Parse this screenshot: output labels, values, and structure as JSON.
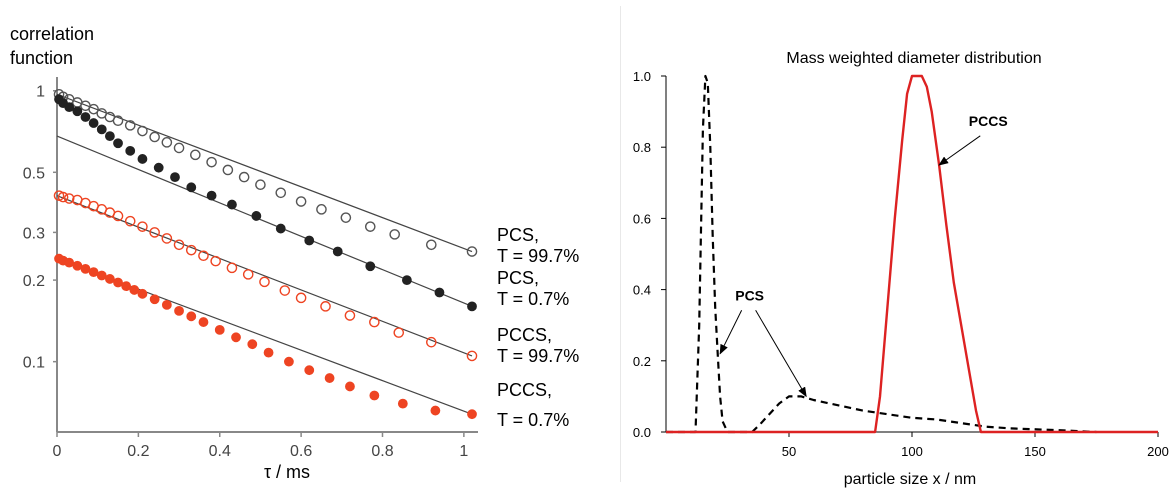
{
  "chart_data": [
    {
      "type": "scatter",
      "title": "",
      "ylabel": "correlation\nfunction",
      "xlabel": "τ / ms",
      "xlim": [
        0,
        1.02
      ],
      "ylim_log": [
        0.055,
        1.05
      ],
      "y_scale": "log",
      "x_ticks": [
        0,
        0.2,
        0.4,
        0.6,
        0.8,
        1
      ],
      "x_tick_labels": [
        "0",
        "0.2",
        "0.4",
        "0.6",
        "0.8",
        "1"
      ],
      "y_ticks": [
        1,
        0.5,
        0.3,
        0.2,
        0.1
      ],
      "y_tick_labels": [
        "1",
        "0.5",
        "0.3",
        "0.2",
        "0.1"
      ],
      "series": [
        {
          "name": "PCS,\nT = 99.7%",
          "color": "#555555",
          "marker": "open-circle",
          "fit": {
            "x0": 0,
            "y0": 0.97,
            "x1": 1.02,
            "y1": 0.255
          },
          "points": [
            [
              0.005,
              0.97
            ],
            [
              0.015,
              0.95
            ],
            [
              0.03,
              0.93
            ],
            [
              0.05,
              0.905
            ],
            [
              0.07,
              0.88
            ],
            [
              0.09,
              0.855
            ],
            [
              0.11,
              0.825
            ],
            [
              0.13,
              0.8
            ],
            [
              0.15,
              0.775
            ],
            [
              0.18,
              0.745
            ],
            [
              0.21,
              0.71
            ],
            [
              0.24,
              0.675
            ],
            [
              0.27,
              0.645
            ],
            [
              0.3,
              0.615
            ],
            [
              0.34,
              0.58
            ],
            [
              0.38,
              0.545
            ],
            [
              0.42,
              0.51
            ],
            [
              0.46,
              0.48
            ],
            [
              0.5,
              0.45
            ],
            [
              0.55,
              0.42
            ],
            [
              0.6,
              0.39
            ],
            [
              0.65,
              0.365
            ],
            [
              0.71,
              0.34
            ],
            [
              0.77,
              0.315
            ],
            [
              0.83,
              0.295
            ],
            [
              0.92,
              0.27
            ],
            [
              1.02,
              0.255
            ]
          ]
        },
        {
          "name": "PCS,\nT = 0.7%",
          "color": "#222222",
          "marker": "filled-star",
          "fit": {
            "x0": 0,
            "y0": 0.68,
            "x1": 1.02,
            "y1": 0.16
          },
          "points": [
            [
              0.005,
              0.93
            ],
            [
              0.015,
              0.9
            ],
            [
              0.03,
              0.87
            ],
            [
              0.05,
              0.84
            ],
            [
              0.07,
              0.8
            ],
            [
              0.09,
              0.76
            ],
            [
              0.11,
              0.72
            ],
            [
              0.13,
              0.68
            ],
            [
              0.15,
              0.64
            ],
            [
              0.18,
              0.6
            ],
            [
              0.21,
              0.56
            ],
            [
              0.25,
              0.52
            ],
            [
              0.29,
              0.48
            ],
            [
              0.33,
              0.44
            ],
            [
              0.38,
              0.41
            ],
            [
              0.43,
              0.38
            ],
            [
              0.49,
              0.345
            ],
            [
              0.55,
              0.31
            ],
            [
              0.62,
              0.28
            ],
            [
              0.69,
              0.255
            ],
            [
              0.77,
              0.225
            ],
            [
              0.86,
              0.2
            ],
            [
              0.94,
              0.18
            ],
            [
              1.02,
              0.16
            ]
          ]
        },
        {
          "name": "PCCS,\nT = 99.7%",
          "color": "#ee4422",
          "marker": "open-circle",
          "fit": {
            "x0": 0,
            "y0": 0.41,
            "x1": 1.02,
            "y1": 0.105
          },
          "points": [
            [
              0.005,
              0.41
            ],
            [
              0.015,
              0.405
            ],
            [
              0.03,
              0.4
            ],
            [
              0.05,
              0.395
            ],
            [
              0.07,
              0.385
            ],
            [
              0.09,
              0.375
            ],
            [
              0.11,
              0.365
            ],
            [
              0.13,
              0.355
            ],
            [
              0.15,
              0.345
            ],
            [
              0.18,
              0.33
            ],
            [
              0.21,
              0.315
            ],
            [
              0.24,
              0.3
            ],
            [
              0.27,
              0.285
            ],
            [
              0.3,
              0.27
            ],
            [
              0.33,
              0.258
            ],
            [
              0.36,
              0.246
            ],
            [
              0.39,
              0.235
            ],
            [
              0.43,
              0.222
            ],
            [
              0.47,
              0.21
            ],
            [
              0.51,
              0.197
            ],
            [
              0.56,
              0.183
            ],
            [
              0.6,
              0.172
            ],
            [
              0.66,
              0.16
            ],
            [
              0.72,
              0.148
            ],
            [
              0.78,
              0.14
            ],
            [
              0.84,
              0.128
            ],
            [
              0.92,
              0.118
            ],
            [
              1.02,
              0.105
            ]
          ]
        },
        {
          "name": "PCCS,\nT = 0.7%",
          "color": "#ee4422",
          "marker": "filled-star",
          "fit": {
            "x0": 0,
            "y0": 0.24,
            "x1": 1.02,
            "y1": 0.064
          },
          "points": [
            [
              0.005,
              0.24
            ],
            [
              0.015,
              0.236
            ],
            [
              0.03,
              0.232
            ],
            [
              0.05,
              0.226
            ],
            [
              0.07,
              0.22
            ],
            [
              0.09,
              0.214
            ],
            [
              0.11,
              0.208
            ],
            [
              0.13,
              0.202
            ],
            [
              0.15,
              0.196
            ],
            [
              0.17,
              0.19
            ],
            [
              0.19,
              0.184
            ],
            [
              0.21,
              0.178
            ],
            [
              0.24,
              0.17
            ],
            [
              0.27,
              0.162
            ],
            [
              0.3,
              0.154
            ],
            [
              0.33,
              0.147
            ],
            [
              0.36,
              0.14
            ],
            [
              0.4,
              0.131
            ],
            [
              0.44,
              0.123
            ],
            [
              0.48,
              0.116
            ],
            [
              0.52,
              0.108
            ],
            [
              0.57,
              0.1
            ],
            [
              0.62,
              0.093
            ],
            [
              0.67,
              0.087
            ],
            [
              0.72,
              0.081
            ],
            [
              0.78,
              0.075
            ],
            [
              0.85,
              0.07
            ],
            [
              0.93,
              0.066
            ],
            [
              1.02,
              0.064
            ]
          ]
        }
      ]
    },
    {
      "type": "line",
      "title": "Mass weighted diameter distribution",
      "xlabel": "particle size x / nm",
      "ylabel": "",
      "xlim": [
        0,
        200
      ],
      "ylim": [
        0,
        1
      ],
      "x_ticks": [
        50,
        100,
        150,
        200
      ],
      "x_tick_labels": [
        "50",
        "100",
        "150",
        "200"
      ],
      "y_ticks": [
        0,
        0.2,
        0.4,
        0.6,
        0.8,
        1.0
      ],
      "y_tick_labels": [
        "0.0",
        "0.2",
        "0.4",
        "0.6",
        "0.8",
        "1.0"
      ],
      "series": [
        {
          "name": "PCS",
          "color": "#000000",
          "style": "dashed",
          "x": [
            0,
            12,
            13.5,
            15,
            16,
            17,
            18,
            19,
            20,
            21,
            22,
            23,
            25,
            30,
            35,
            38,
            42,
            46,
            50,
            55,
            60,
            70,
            80,
            90,
            100,
            110,
            120,
            130,
            140,
            160,
            175
          ],
          "y": [
            0,
            0,
            0.3,
            0.85,
            1.0,
            0.98,
            0.8,
            0.55,
            0.35,
            0.22,
            0.1,
            0.03,
            0,
            0,
            0,
            0.02,
            0.05,
            0.08,
            0.1,
            0.1,
            0.09,
            0.075,
            0.06,
            0.05,
            0.04,
            0.035,
            0.025,
            0.015,
            0.01,
            0.005,
            0
          ]
        },
        {
          "name": "PCCS",
          "color": "#dd2222",
          "style": "solid",
          "x": [
            0,
            85,
            87,
            90,
            93,
            96,
            98,
            100,
            102,
            104,
            106,
            108,
            111,
            114,
            117,
            120,
            123,
            126,
            128,
            200
          ],
          "y": [
            0,
            0,
            0.1,
            0.35,
            0.6,
            0.82,
            0.95,
            1.0,
            1.0,
            1.0,
            0.97,
            0.9,
            0.75,
            0.58,
            0.42,
            0.3,
            0.18,
            0.06,
            0,
            0
          ]
        }
      ],
      "annotations": [
        {
          "text": "PCCS",
          "target_x": 111,
          "target_y": 0.75,
          "label_x": 131,
          "label_y": 0.86
        },
        {
          "text": "PCS",
          "target_x": 22,
          "target_y": 0.22,
          "label_x": 34,
          "label_y": 0.37
        },
        {
          "text": "",
          "target_x": 57,
          "target_y": 0.1,
          "label_x": 34,
          "label_y": 0.37
        }
      ]
    }
  ]
}
